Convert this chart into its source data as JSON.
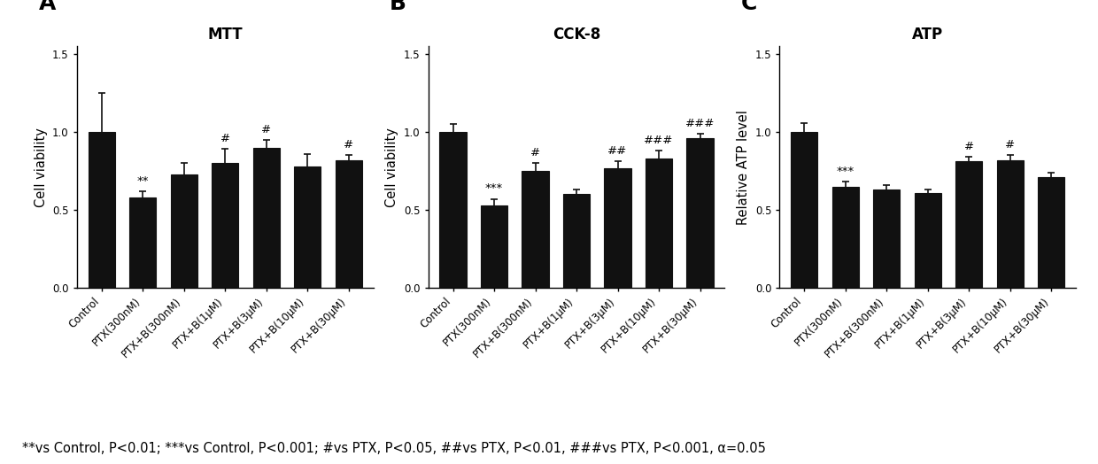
{
  "panels": [
    {
      "label": "A",
      "title": "MTT",
      "ylabel": "Cell viability",
      "categories": [
        "Control",
        "PTX(300nM)",
        "PTX+B(300nM)",
        "PTX+B(1μM)",
        "PTX+B(3μM)",
        "PTX+B(10μM)",
        "PTX+B(30μM)"
      ],
      "values": [
        1.0,
        0.58,
        0.73,
        0.8,
        0.9,
        0.78,
        0.82
      ],
      "errors": [
        0.25,
        0.04,
        0.07,
        0.09,
        0.05,
        0.08,
        0.03
      ],
      "sig_labels": [
        "",
        "**",
        "",
        "#",
        "#",
        "",
        "#"
      ]
    },
    {
      "label": "B",
      "title": "CCK-8",
      "ylabel": "Cell viability",
      "categories": [
        "Control",
        "PTX(300nM)",
        "PTX+B(300nM)",
        "PTX+B(1μM)",
        "PTX+B(3μM)",
        "PTX+B(10μM)",
        "PTX+B(30μM)"
      ],
      "values": [
        1.0,
        0.53,
        0.75,
        0.6,
        0.77,
        0.83,
        0.96
      ],
      "errors": [
        0.05,
        0.04,
        0.05,
        0.03,
        0.04,
        0.05,
        0.03
      ],
      "sig_labels": [
        "",
        "***",
        "#",
        "",
        "##",
        "###",
        "###"
      ]
    },
    {
      "label": "C",
      "title": "ATP",
      "ylabel": "Relative ATP level",
      "categories": [
        "Control",
        "PTX(300nM)",
        "PTX+B(300nM)",
        "PTX+B(1μM)",
        "PTX+B(3μM)",
        "PTX+B(10μM)",
        "PTX+B(30μM)"
      ],
      "values": [
        1.0,
        0.65,
        0.63,
        0.61,
        0.81,
        0.82,
        0.71
      ],
      "errors": [
        0.06,
        0.03,
        0.03,
        0.02,
        0.03,
        0.03,
        0.03
      ],
      "sig_labels": [
        "",
        "***",
        "",
        "",
        "#",
        "#",
        ""
      ]
    }
  ],
  "bar_color": "#111111",
  "bar_edgecolor": "#111111",
  "error_color": "#111111",
  "ylim": [
    0.0,
    1.55
  ],
  "yticks": [
    0.0,
    0.5,
    1.0,
    1.5
  ],
  "footnote": "**vs Control, P<0.01; ***vs Control, P<0.001; #vs PTX, P<0.05, ##vs PTX, P<0.01, ###vs PTX, P<0.001, α=0.05",
  "panel_label_fontsize": 18,
  "title_fontsize": 12,
  "tick_fontsize": 8.5,
  "ylabel_fontsize": 10.5,
  "sig_fontsize": 9.5,
  "footnote_fontsize": 10.5
}
